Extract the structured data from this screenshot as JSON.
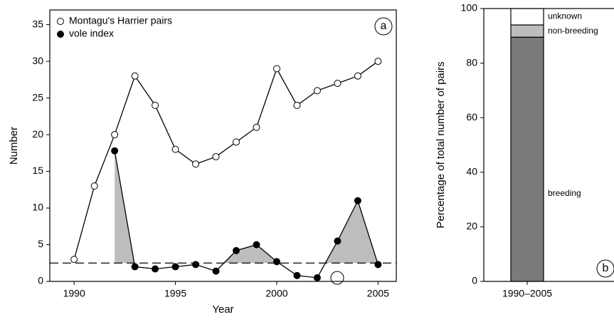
{
  "chart_data": [
    {
      "type": "line",
      "x_label": "Year",
      "y_label": "Number",
      "annotation": "a",
      "x": [
        1990,
        1991,
        1992,
        1993,
        1994,
        1995,
        1996,
        1997,
        1998,
        1999,
        2000,
        2001,
        2002,
        2003,
        2004,
        2005
      ],
      "xlim": [
        1988.8,
        2005.9
      ],
      "xticks": [
        1990,
        1995,
        2000,
        2005
      ],
      "ylim": [
        0,
        37
      ],
      "yticks": [
        0,
        5,
        10,
        15,
        20,
        25,
        30,
        35
      ],
      "reference_line": 2.5,
      "series": [
        {
          "name": "Montagu's Harrier pairs",
          "color": "#ffffff",
          "values": [
            3,
            13,
            20,
            28,
            24,
            18,
            16,
            17,
            19,
            21,
            29,
            24,
            26,
            27,
            28,
            30
          ]
        },
        {
          "name": "vole index",
          "color": "#000000",
          "values": [
            null,
            null,
            17.8,
            2.0,
            1.7,
            2.0,
            2.3,
            1.4,
            4.2,
            5.0,
            2.7,
            0.8,
            0.5,
            5.5,
            11,
            2.3
          ]
        }
      ]
    },
    {
      "type": "bar",
      "stacked": true,
      "y_label": "Percentage of total number of pairs",
      "annotation": "b",
      "categories": [
        "1990–2005"
      ],
      "ylim": [
        0,
        100
      ],
      "yticks": [
        0,
        20,
        40,
        60,
        80,
        100
      ],
      "series": [
        {
          "name": "breeding",
          "color": "#7a7a7a",
          "values": [
            89.5
          ]
        },
        {
          "name": "non-breeding",
          "color": "#bdbdbd",
          "values": [
            4.5
          ]
        },
        {
          "name": "unknown",
          "color": "#ffffff",
          "values": [
            6
          ]
        }
      ]
    }
  ]
}
